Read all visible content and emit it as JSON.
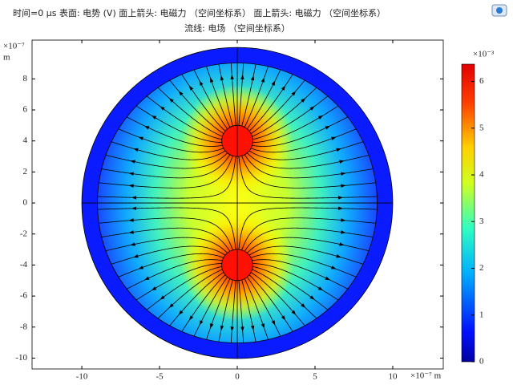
{
  "chart_data": {
    "type": "field",
    "title": "时间=0 µs    表面: 电势 (V)   面上箭头: 电磁力 （空间坐标系）   面上箭头: 电磁力 （空间坐标系）",
    "subtitle": "流线: 电场 （空间坐标系）",
    "x_label": "×10⁻⁷ m",
    "y_exponent": "×10⁻⁷",
    "y_unit": "m",
    "colorbar_exponent": "×10⁻³",
    "xlim": [
      -13.2,
      13.25
    ],
    "xticks": [
      -10,
      -5,
      0,
      5,
      10
    ],
    "ylim": [
      -10.7,
      10.5
    ],
    "yticks": [
      -10,
      -8,
      -6,
      -4,
      -2,
      0,
      2,
      4,
      6,
      8
    ],
    "clim": [
      0,
      6.37
    ],
    "cticks": [
      0,
      1,
      2,
      3,
      4,
      5,
      6
    ],
    "colormap": "jet"
  }
}
